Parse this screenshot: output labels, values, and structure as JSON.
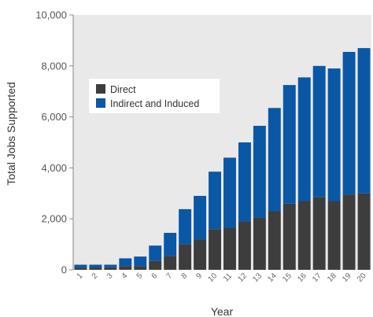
{
  "chart_data": {
    "type": "bar",
    "stacked": true,
    "categories": [
      "1",
      "2",
      "3",
      "4",
      "5",
      "6",
      "7",
      "8",
      "9",
      "10",
      "11",
      "12",
      "13",
      "14",
      "15",
      "16",
      "17",
      "18",
      "19",
      "20"
    ],
    "series": [
      {
        "name": "Direct",
        "color": "#3d3d3d",
        "values": [
          80,
          90,
          100,
          150,
          150,
          350,
          550,
          1000,
          1200,
          1600,
          1650,
          1900,
          2050,
          2300,
          2600,
          2700,
          2850,
          2700,
          2950,
          3000
        ]
      },
      {
        "name": "Indirect and Induced",
        "color": "#0a57a6",
        "values": [
          120,
          110,
          100,
          300,
          370,
          600,
          900,
          1380,
          1700,
          2250,
          2750,
          3100,
          3600,
          4050,
          4650,
          4850,
          5150,
          5200,
          5600,
          5700
        ]
      }
    ],
    "xlabel": "Year",
    "ylabel": "Total Jobs Supported",
    "ylim": [
      0,
      10000
    ],
    "yticks": [
      0,
      2000,
      4000,
      6000,
      8000,
      10000
    ],
    "ytick_labels": [
      "0",
      "2,000",
      "4,000",
      "6,000",
      "8,000",
      "10,000"
    ],
    "plot_background": "#e9e9e9",
    "grid": false,
    "legend_position": "upper-left"
  }
}
